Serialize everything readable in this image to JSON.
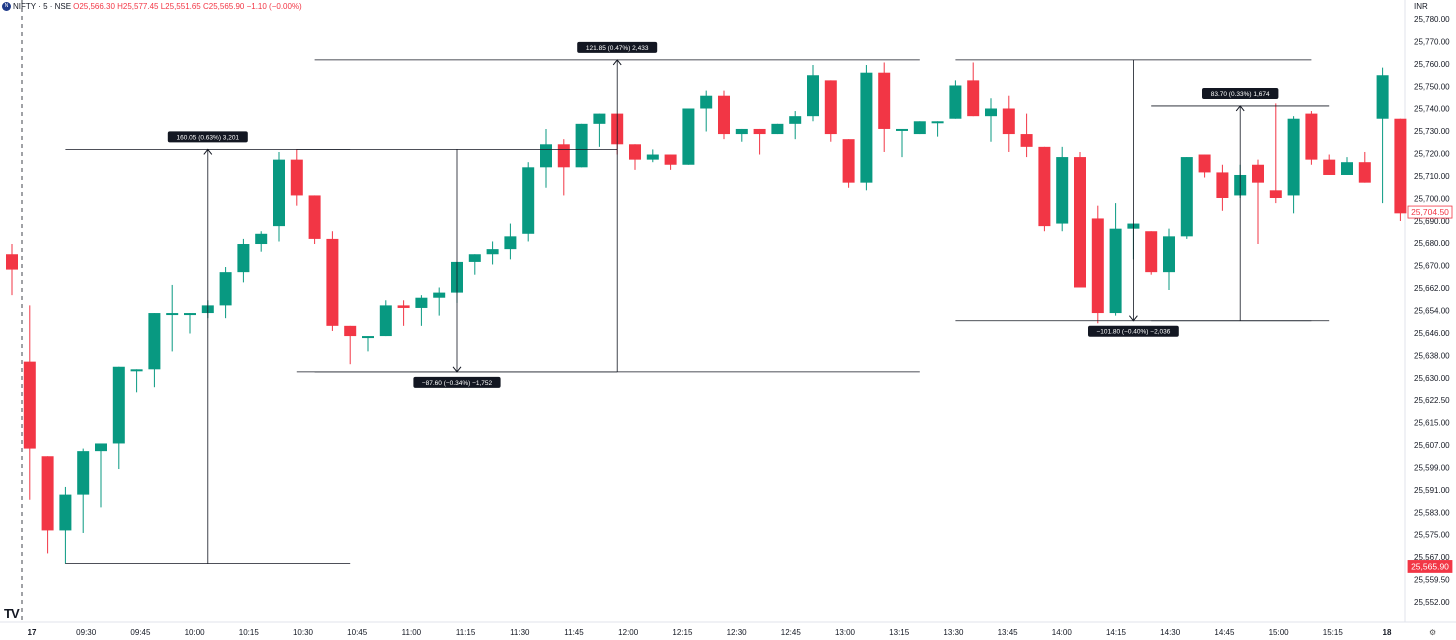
{
  "header": {
    "symbol_badge": "N",
    "symbol": "NIFTY · 5 · NSE",
    "ohlc": "O25,566.30 H25,577.45 L25,551.65 C25,565.90 −1.10 (−0.00%)"
  },
  "currency": "INR",
  "logo_text": "TV",
  "icons": {
    "logo": "tradingview-logo-icon",
    "settings": "gear-icon"
  },
  "colors": {
    "up": "#089981",
    "down": "#f23645",
    "annotation_bg": "#131722",
    "line": "#131722"
  },
  "chart_data": {
    "type": "candlestick",
    "title": "",
    "xlabel": "",
    "ylabel": "",
    "ylim": [
      25552,
      25787
    ],
    "grid": false,
    "y_ticks": [
      "25,780.00",
      "25,770.00",
      "25,760.00",
      "25,750.00",
      "25,740.00",
      "25,730.00",
      "25,720.00",
      "25,710.00",
      "25,700.00",
      "25,690.00",
      "25,680.00",
      "25,670.00",
      "25,662.00",
      "25,654.00",
      "25,646.00",
      "25,638.00",
      "25,630.00",
      "25,622.50",
      "25,615.00",
      "25,607.00",
      "25,599.00",
      "25,591.00",
      "25,583.00",
      "25,575.00",
      "25,567.00",
      "25,559.50",
      "25,552.00"
    ],
    "x_ticks": [
      "17",
      "09:30",
      "09:45",
      "10:00",
      "10:15",
      "10:30",
      "10:45",
      "11:00",
      "11:15",
      "11:30",
      "11:45",
      "12:00",
      "12:15",
      "12:30",
      "12:45",
      "13:00",
      "13:15",
      "13:30",
      "13:45",
      "14:00",
      "14:15",
      "14:30",
      "14:45",
      "15:00",
      "15:15",
      "18"
    ],
    "session_breaks": [
      0,
      82
    ],
    "candles": [
      {
        "o": 25688,
        "h": 25692,
        "l": 25672,
        "c": 25682
      },
      {
        "o": 25646,
        "h": 25668,
        "l": 25592,
        "c": 25612
      },
      {
        "o": 25609,
        "h": 25609,
        "l": 25571,
        "c": 25580
      },
      {
        "o": 25580,
        "h": 25597,
        "l": 25567,
        "c": 25594
      },
      {
        "o": 25594,
        "h": 25612,
        "l": 25579,
        "c": 25611
      },
      {
        "o": 25611,
        "h": 25614,
        "l": 25589,
        "c": 25614
      },
      {
        "o": 25614,
        "h": 25644,
        "l": 25604,
        "c": 25644
      },
      {
        "o": 25643,
        "h": 25643,
        "l": 25634,
        "c": 25643
      },
      {
        "o": 25643,
        "h": 25665,
        "l": 25636,
        "c": 25665
      },
      {
        "o": 25665,
        "h": 25676,
        "l": 25650,
        "c": 25665
      },
      {
        "o": 25665,
        "h": 25665,
        "l": 25657,
        "c": 25665
      },
      {
        "o": 25665,
        "h": 25670,
        "l": 25663,
        "c": 25668
      },
      {
        "o": 25668,
        "h": 25683,
        "l": 25663,
        "c": 25681
      },
      {
        "o": 25681,
        "h": 25694,
        "l": 25677,
        "c": 25692
      },
      {
        "o": 25692,
        "h": 25697,
        "l": 25689,
        "c": 25696
      },
      {
        "o": 25699,
        "h": 25728,
        "l": 25693,
        "c": 25725
      },
      {
        "o": 25725,
        "h": 25729,
        "l": 25707,
        "c": 25711
      },
      {
        "o": 25711,
        "h": 25711,
        "l": 25692,
        "c": 25694
      },
      {
        "o": 25694,
        "h": 25697,
        "l": 25658,
        "c": 25660
      },
      {
        "o": 25660,
        "h": 25660,
        "l": 25645,
        "c": 25656
      },
      {
        "o": 25656,
        "h": 25656,
        "l": 25650,
        "c": 25656
      },
      {
        "o": 25656,
        "h": 25670,
        "l": 25656,
        "c": 25668
      },
      {
        "o": 25668,
        "h": 25670,
        "l": 25660,
        "c": 25667
      },
      {
        "o": 25667,
        "h": 25672,
        "l": 25660,
        "c": 25671
      },
      {
        "o": 25671,
        "h": 25675,
        "l": 25664,
        "c": 25673
      },
      {
        "o": 25673,
        "h": 25685,
        "l": 25669,
        "c": 25685
      },
      {
        "o": 25685,
        "h": 25688,
        "l": 25680,
        "c": 25688
      },
      {
        "o": 25688,
        "h": 25693,
        "l": 25684,
        "c": 25690
      },
      {
        "o": 25690,
        "h": 25700,
        "l": 25686,
        "c": 25695
      },
      {
        "o": 25696,
        "h": 25724,
        "l": 25693,
        "c": 25722
      },
      {
        "o": 25722,
        "h": 25737,
        "l": 25714,
        "c": 25731
      },
      {
        "o": 25731,
        "h": 25733,
        "l": 25711,
        "c": 25722
      },
      {
        "o": 25722,
        "h": 25739,
        "l": 25722,
        "c": 25739
      },
      {
        "o": 25739,
        "h": 25743,
        "l": 25730,
        "c": 25743
      },
      {
        "o": 25743,
        "h": 25743,
        "l": 25727,
        "c": 25731
      },
      {
        "o": 25731,
        "h": 25731,
        "l": 25721,
        "c": 25725
      },
      {
        "o": 25725,
        "h": 25729,
        "l": 25724,
        "c": 25727
      },
      {
        "o": 25727,
        "h": 25727,
        "l": 25721,
        "c": 25723
      },
      {
        "o": 25723,
        "h": 25745,
        "l": 25723,
        "c": 25745
      },
      {
        "o": 25745,
        "h": 25752,
        "l": 25736,
        "c": 25750
      },
      {
        "o": 25750,
        "h": 25752,
        "l": 25733,
        "c": 25735
      },
      {
        "o": 25735,
        "h": 25737,
        "l": 25732,
        "c": 25737
      },
      {
        "o": 25737,
        "h": 25737,
        "l": 25727,
        "c": 25735
      },
      {
        "o": 25735,
        "h": 25739,
        "l": 25735,
        "c": 25739
      },
      {
        "o": 25739,
        "h": 25744,
        "l": 25733,
        "c": 25742
      },
      {
        "o": 25742,
        "h": 25762,
        "l": 25740,
        "c": 25758
      },
      {
        "o": 25756,
        "h": 25756,
        "l": 25732,
        "c": 25735
      },
      {
        "o": 25733,
        "h": 25733,
        "l": 25714,
        "c": 25716
      },
      {
        "o": 25716,
        "h": 25762,
        "l": 25713,
        "c": 25759
      },
      {
        "o": 25759,
        "h": 25763,
        "l": 25728,
        "c": 25737
      },
      {
        "o": 25737,
        "h": 25737,
        "l": 25726,
        "c": 25737
      },
      {
        "o": 25735,
        "h": 25740,
        "l": 25735,
        "c": 25740
      },
      {
        "o": 25740,
        "h": 25740,
        "l": 25734,
        "c": 25740
      },
      {
        "o": 25741,
        "h": 25756,
        "l": 25741,
        "c": 25754
      },
      {
        "o": 25756,
        "h": 25763,
        "l": 25742,
        "c": 25742
      },
      {
        "o": 25742,
        "h": 25749,
        "l": 25732,
        "c": 25745
      },
      {
        "o": 25745,
        "h": 25750,
        "l": 25728,
        "c": 25735
      },
      {
        "o": 25735,
        "h": 25743,
        "l": 25726,
        "c": 25730
      },
      {
        "o": 25730,
        "h": 25730,
        "l": 25697,
        "c": 25699
      },
      {
        "o": 25700,
        "h": 25730,
        "l": 25697,
        "c": 25726
      },
      {
        "o": 25726,
        "h": 25728,
        "l": 25675,
        "c": 25675
      },
      {
        "o": 25702,
        "h": 25707,
        "l": 25661,
        "c": 25665
      },
      {
        "o": 25665,
        "h": 25708,
        "l": 25664,
        "c": 25698
      },
      {
        "o": 25698,
        "h": 25700,
        "l": 25686,
        "c": 25700
      },
      {
        "o": 25697,
        "h": 25697,
        "l": 25680,
        "c": 25681
      },
      {
        "o": 25681,
        "h": 25698,
        "l": 25674,
        "c": 25695
      },
      {
        "o": 25695,
        "h": 25726,
        "l": 25694,
        "c": 25726
      },
      {
        "o": 25727,
        "h": 25727,
        "l": 25718,
        "c": 25720
      },
      {
        "o": 25720,
        "h": 25723,
        "l": 25705,
        "c": 25710
      },
      {
        "o": 25711,
        "h": 25723,
        "l": 25710,
        "c": 25719
      },
      {
        "o": 25723,
        "h": 25725,
        "l": 25692,
        "c": 25716
      },
      {
        "o": 25713,
        "h": 25747,
        "l": 25708,
        "c": 25710
      },
      {
        "o": 25711,
        "h": 25742,
        "l": 25704,
        "c": 25741
      },
      {
        "o": 25743,
        "h": 25744,
        "l": 25723,
        "c": 25725
      },
      {
        "o": 25725,
        "h": 25727,
        "l": 25719,
        "c": 25719
      },
      {
        "o": 25719,
        "h": 25726,
        "l": 25719,
        "c": 25724
      },
      {
        "o": 25724,
        "h": 25728,
        "l": 25716,
        "c": 25716
      },
      {
        "o": 25741,
        "h": 25761,
        "l": 25708,
        "c": 25758
      },
      {
        "o": 25741,
        "h": 25741,
        "l": 25701,
        "c": 25704
      }
    ],
    "measurements": [
      {
        "label": "160.05 (0.63%) 3,201",
        "from": {
          "i": 3,
          "price": 25567
        },
        "to": {
          "i": 19,
          "price": 25729
        },
        "dir": "up"
      },
      {
        "label": "−87.60 (−0.34%) −1,752",
        "from": {
          "i": 16,
          "price": 25729
        },
        "to": {
          "i": 34,
          "price": 25642
        },
        "dir": "down"
      },
      {
        "label": "121.85 (0.47%) 2,433",
        "from": {
          "i": 17,
          "price": 25642
        },
        "to": {
          "i": 51,
          "price": 25764
        },
        "dir": "up"
      },
      {
        "label": "−101.80 (−0.40%) −2,036",
        "from": {
          "i": 53,
          "price": 25764
        },
        "to": {
          "i": 73,
          "price": 25662
        },
        "dir": "down"
      },
      {
        "label": "83.70 (0.33%) 1,674",
        "from": {
          "i": 64,
          "price": 25662
        },
        "to": {
          "i": 74,
          "price": 25746
        },
        "dir": "up"
      }
    ],
    "price_tags": [
      {
        "label": "25,704.50",
        "price": 25704.5,
        "style": "outline"
      },
      {
        "label": "25,565.90",
        "price": 25565.9,
        "style": "filled"
      }
    ]
  }
}
